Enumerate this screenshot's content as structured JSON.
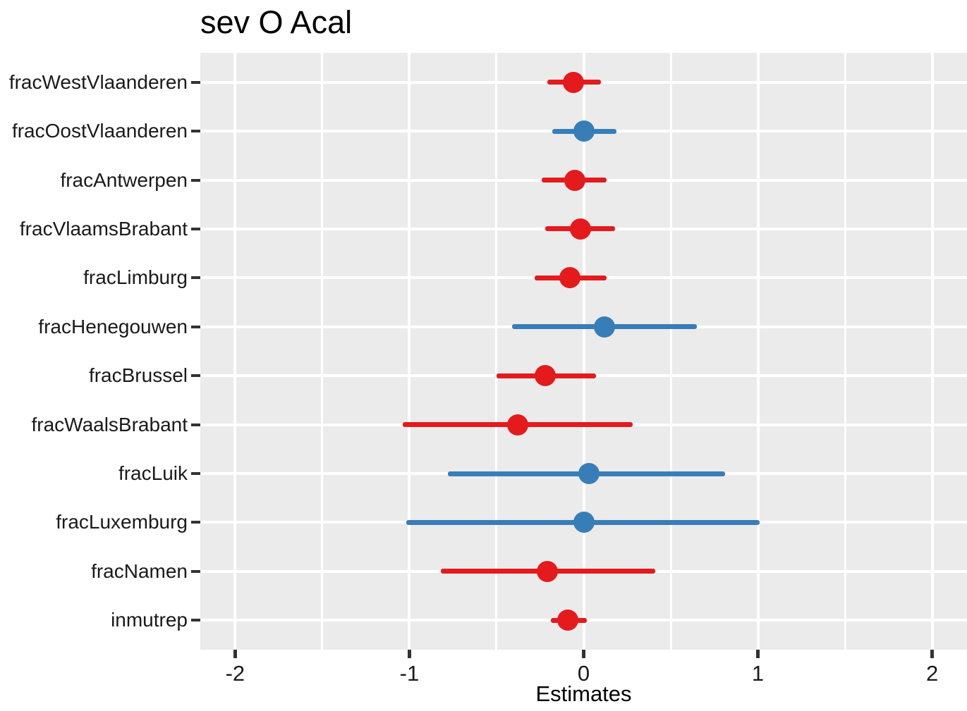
{
  "title": "sev O Acal",
  "colors": {
    "negative_estimate": "#e41a1c",
    "positive_estimate": "#377eb8",
    "panel_background": "#ebebeb",
    "gridline": "#ffffff",
    "tick_mark": "#333333",
    "axis_text": "#1a1a1a",
    "title_text": "#000000"
  },
  "chart_data": {
    "type": "scatter",
    "variant": "dot-whisker-coefficient-plot",
    "title": "sev O Acal",
    "xlabel": "Estimates",
    "ylabel": "",
    "xlim": [
      -2.2,
      2.2
    ],
    "xticks": [
      -2,
      -1,
      0,
      1,
      2
    ],
    "xtick_labels": [
      "-2",
      "-1",
      "0",
      "1",
      "2"
    ],
    "x_minor_gridlines": [
      -1.5,
      -0.5,
      0.5,
      1.5
    ],
    "grid": "on",
    "legend": "none",
    "categories": [
      "fracWestVlaanderen",
      "fracOostVlaanderen",
      "fracAntwerpen",
      "fracVlaamsBrabant",
      "fracLimburg",
      "fracHenegouwen",
      "fracBrussel",
      "fracWaalsBrabant",
      "fracLuik",
      "fracLuxemburg",
      "fracNamen",
      "inmutrep"
    ],
    "series": [
      {
        "term": "fracWestVlaanderen",
        "estimate": -0.06,
        "ci_low": -0.21,
        "ci_high": 0.1,
        "color": "#e41a1c"
      },
      {
        "term": "fracOostVlaanderen",
        "estimate": 0.0,
        "ci_low": -0.18,
        "ci_high": 0.19,
        "color": "#377eb8"
      },
      {
        "term": "fracAntwerpen",
        "estimate": -0.05,
        "ci_low": -0.24,
        "ci_high": 0.13,
        "color": "#e41a1c"
      },
      {
        "term": "fracVlaamsBrabant",
        "estimate": -0.02,
        "ci_low": -0.22,
        "ci_high": 0.18,
        "color": "#e41a1c"
      },
      {
        "term": "fracLimburg",
        "estimate": -0.08,
        "ci_low": -0.28,
        "ci_high": 0.13,
        "color": "#e41a1c"
      },
      {
        "term": "fracHenegouwen",
        "estimate": 0.12,
        "ci_low": -0.41,
        "ci_high": 0.65,
        "color": "#377eb8"
      },
      {
        "term": "fracBrussel",
        "estimate": -0.22,
        "ci_low": -0.5,
        "ci_high": 0.07,
        "color": "#e41a1c"
      },
      {
        "term": "fracWaalsBrabant",
        "estimate": -0.38,
        "ci_low": -1.04,
        "ci_high": 0.28,
        "color": "#e41a1c"
      },
      {
        "term": "fracLuik",
        "estimate": 0.03,
        "ci_low": -0.78,
        "ci_high": 0.81,
        "color": "#377eb8"
      },
      {
        "term": "fracLuxemburg",
        "estimate": 0.0,
        "ci_low": -1.02,
        "ci_high": 1.01,
        "color": "#377eb8"
      },
      {
        "term": "fracNamen",
        "estimate": -0.21,
        "ci_low": -0.82,
        "ci_high": 0.41,
        "color": "#e41a1c"
      },
      {
        "term": "inmutrep",
        "estimate": -0.09,
        "ci_low": -0.19,
        "ci_high": 0.02,
        "color": "#e41a1c"
      }
    ]
  }
}
